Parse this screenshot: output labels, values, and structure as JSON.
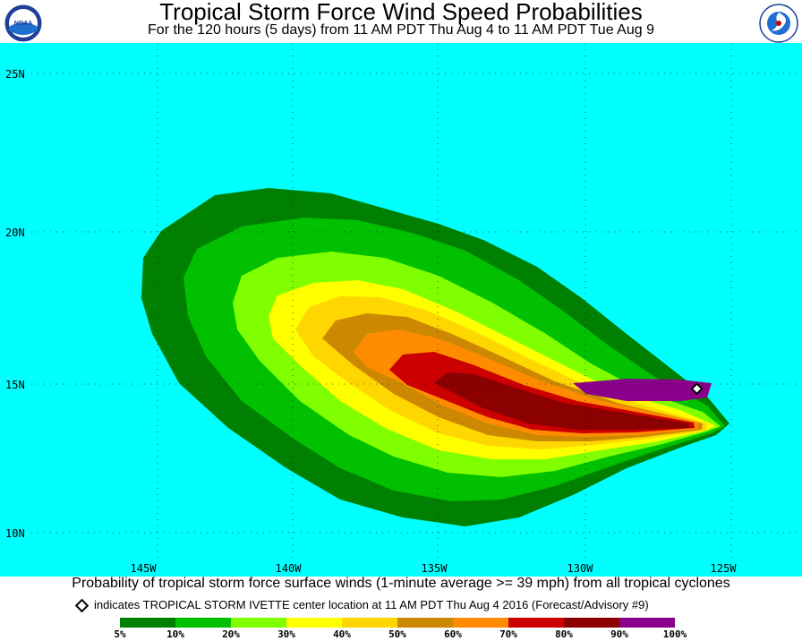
{
  "header": {
    "title": "Tropical Storm Force Wind Speed Probabilities",
    "subtitle": "For the 120 hours (5 days) from 11 AM PDT Thu Aug 4 to 11 AM PDT Tue Aug 9",
    "left_logo_text": "NOAA",
    "right_logo_text": "NATIONAL WEATHER SERVICE"
  },
  "map": {
    "background_color": "#00ffff",
    "latitude_labels": [
      "25N",
      "20N",
      "15N",
      "10N"
    ],
    "longitude_labels": [
      "145W",
      "140W",
      "135W",
      "130W",
      "125W"
    ],
    "storm_center": {
      "lat": 14.7,
      "lon": -126.2
    }
  },
  "caption": {
    "main": "Probability of tropical storm force surface winds (1-minute average >= 39 mph) from all tropical cyclones",
    "center_note": "indicates TROPICAL STORM IVETTE center location at 11 AM PDT Thu Aug 4 2016 (Forecast/Advisory #9)"
  },
  "legend": {
    "items": [
      {
        "label": "5%",
        "color": "#008000"
      },
      {
        "label": "10%",
        "color": "#00c000"
      },
      {
        "label": "20%",
        "color": "#7fff00"
      },
      {
        "label": "30%",
        "color": "#ffff00"
      },
      {
        "label": "40%",
        "color": "#ffd700"
      },
      {
        "label": "50%",
        "color": "#cc8800"
      },
      {
        "label": "60%",
        "color": "#ff8c00"
      },
      {
        "label": "70%",
        "color": "#cc0000"
      },
      {
        "label": "80%",
        "color": "#8b0000"
      },
      {
        "label": "90%",
        "color": "#8b008b"
      },
      {
        "label": "100%",
        "color": "#8b008b"
      }
    ]
  }
}
